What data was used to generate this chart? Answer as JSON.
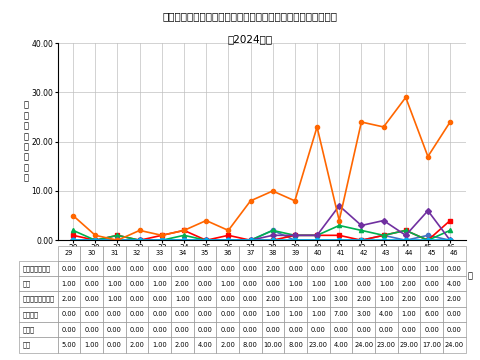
{
  "title_line1": "青森県のマイコプラズマ肺炎　定点当たり報告数（保健所別）",
  "title_line2": "（2024年）",
  "ylabel_chars": [
    "定",
    "点",
    "当",
    "た",
    "り",
    "報",
    "告",
    "数"
  ],
  "xlabel_suffix": "週",
  "weeks": [
    29,
    30,
    31,
    32,
    33,
    34,
    35,
    36,
    37,
    38,
    39,
    40,
    41,
    42,
    43,
    44,
    45,
    46
  ],
  "series_order": [
    "東地方・青森市",
    "弘前",
    "三戸地方・八戸市",
    "五所川原",
    "上十三",
    "むつ"
  ],
  "series": {
    "東地方・青森市": {
      "values": [
        0.0,
        0.0,
        0.0,
        0.0,
        0.0,
        0.0,
        0.0,
        0.0,
        0.0,
        2.0,
        0.0,
        0.0,
        0.0,
        0.0,
        1.0,
        0.0,
        1.0,
        0.0
      ],
      "color": "#4472C4",
      "marker": "o",
      "linewidth": 1.2
    },
    "弘前": {
      "values": [
        1.0,
        0.0,
        1.0,
        0.0,
        1.0,
        2.0,
        0.0,
        1.0,
        0.0,
        0.0,
        1.0,
        1.0,
        1.0,
        0.0,
        1.0,
        2.0,
        0.0,
        4.0
      ],
      "color": "#FF0000",
      "marker": "s",
      "linewidth": 1.2
    },
    "三戸地方・八戸市": {
      "values": [
        2.0,
        0.0,
        1.0,
        0.0,
        0.0,
        1.0,
        0.0,
        0.0,
        0.0,
        2.0,
        1.0,
        1.0,
        3.0,
        2.0,
        1.0,
        2.0,
        0.0,
        2.0
      ],
      "color": "#00B050",
      "marker": "^",
      "linewidth": 1.2
    },
    "五所川原": {
      "values": [
        0.0,
        0.0,
        0.0,
        0.0,
        0.0,
        0.0,
        0.0,
        0.0,
        0.0,
        1.0,
        1.0,
        1.0,
        7.0,
        3.0,
        4.0,
        1.0,
        6.0,
        0.0
      ],
      "color": "#7030A0",
      "marker": "D",
      "linewidth": 1.2
    },
    "上十三": {
      "values": [
        0.0,
        0.0,
        0.0,
        0.0,
        0.0,
        0.0,
        0.0,
        0.0,
        0.0,
        0.0,
        0.0,
        0.0,
        0.0,
        0.0,
        0.0,
        0.0,
        0.0,
        0.0
      ],
      "color": "#00B0F0",
      "marker": "o",
      "linewidth": 1.2
    },
    "むつ": {
      "values": [
        5.0,
        1.0,
        0.0,
        2.0,
        1.0,
        2.0,
        4.0,
        2.0,
        8.0,
        10.0,
        8.0,
        23.0,
        4.0,
        24.0,
        23.0,
        29.0,
        17.0,
        24.0
      ],
      "color": "#FF6600",
      "marker": "o",
      "linewidth": 1.2
    }
  },
  "ylim": [
    0,
    40
  ],
  "yticks": [
    0.0,
    10.0,
    20.0,
    30.0,
    40.0
  ],
  "table_row_labels": [
    "東地方・青森市",
    "弘前",
    "三戸地方・八戸市",
    "五所川原",
    "上十三",
    "むつ"
  ],
  "bg_color": "#FFFFFF",
  "grid_color": "#C0C0C0"
}
